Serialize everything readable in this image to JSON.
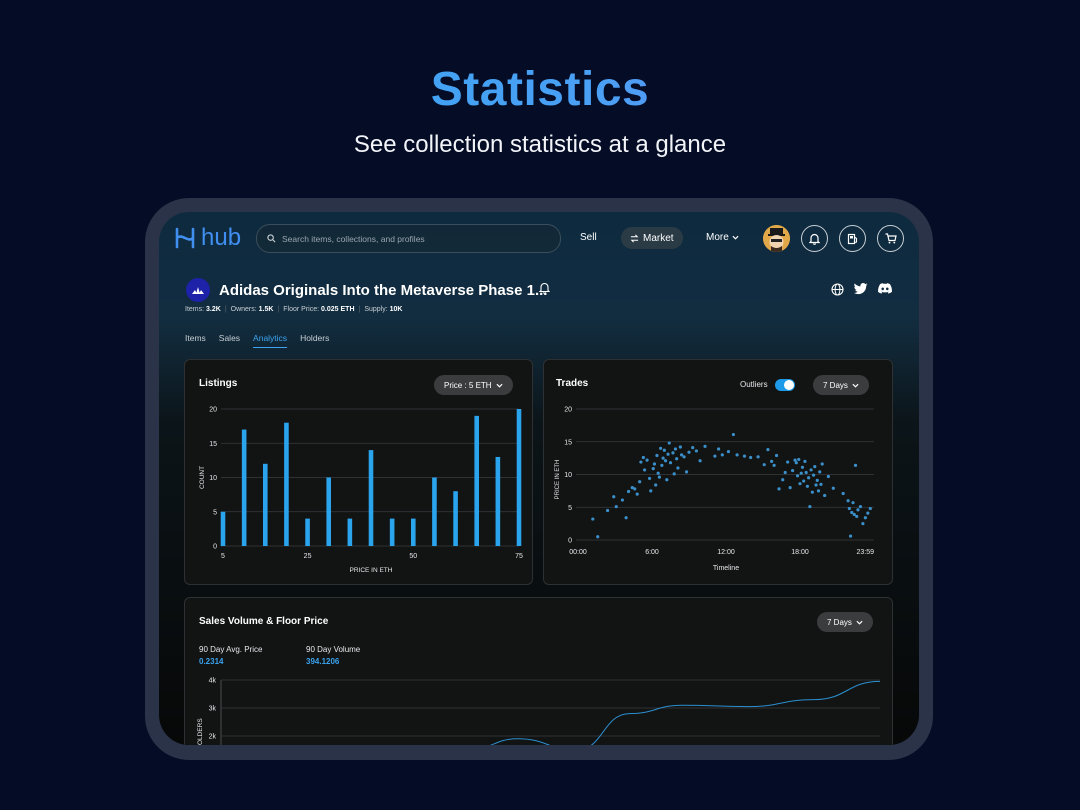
{
  "hero": {
    "title": "Statistics",
    "subtitle": "See collection statistics at a glance"
  },
  "nav": {
    "logo_text": "hub",
    "search_placeholder": "Search items, collections, and profiles",
    "sell": "Sell",
    "market": "Market",
    "more": "More"
  },
  "collection": {
    "title": "Adidas Originals Into the Metaverse Phase 1...",
    "stats": [
      {
        "label": "Items:",
        "value": "3.2K"
      },
      {
        "label": "Owners:",
        "value": "1.5K"
      },
      {
        "label": "Floor Price:",
        "value": "0.025 ETH"
      },
      {
        "label": "Supply:",
        "value": "10K"
      }
    ]
  },
  "tabs": [
    "Items",
    "Sales",
    "Analytics",
    "Holders"
  ],
  "active_tab": "Analytics",
  "colors": {
    "accent": "#3ea4ef",
    "bar": "#2aa4ec",
    "dot": "#3b8fc9"
  },
  "listings": {
    "title": "Listings",
    "filter": "Price : 5 ETH",
    "chart_data": {
      "type": "bar",
      "xlabel": "PRICE IN ETH",
      "ylabel": "COUNT",
      "ylim": [
        0,
        20
      ],
      "yticks": [
        "0",
        "5",
        "10",
        "15",
        "20"
      ],
      "xticks": [
        {
          "label": "5",
          "value": 5
        },
        {
          "label": "25",
          "value": 25
        },
        {
          "label": "50",
          "value": 50
        },
        {
          "label": "75",
          "value": 75
        }
      ],
      "x": [
        5,
        10,
        15,
        20,
        25,
        30,
        35,
        40,
        45,
        50,
        55,
        60,
        65,
        70,
        75
      ],
      "values": [
        5,
        17,
        12,
        18,
        4,
        10,
        4,
        14,
        4,
        4,
        10,
        8,
        19,
        13,
        20
      ]
    }
  },
  "trades": {
    "title": "Trades",
    "outliers_label": "Outliers",
    "range": "7 Days",
    "chart_data": {
      "type": "scatter",
      "xlabel": "Timeline",
      "ylabel": "PRICE IN ETH",
      "ylim": [
        0,
        20
      ],
      "yticks": [
        "0",
        "5",
        "10",
        "15",
        "20"
      ],
      "xticks": [
        {
          "label": "00:00",
          "value": 0
        },
        {
          "label": "6:00",
          "value": 6
        },
        {
          "label": "12:00",
          "value": 12
        },
        {
          "label": "18:00",
          "value": 18
        },
        {
          "label": "23:59",
          "value": 24
        }
      ],
      "points": [
        [
          1.2,
          3.2
        ],
        [
          1.6,
          0.5
        ],
        [
          2.4,
          4.5
        ],
        [
          2.9,
          6.6
        ],
        [
          3.1,
          5.1
        ],
        [
          3.6,
          6.1
        ],
        [
          3.9,
          3.4
        ],
        [
          4.1,
          7.4
        ],
        [
          4.4,
          8.0
        ],
        [
          4.6,
          7.8
        ],
        [
          4.8,
          7.0
        ],
        [
          5.0,
          8.9
        ],
        [
          5.1,
          11.9
        ],
        [
          5.3,
          12.6
        ],
        [
          5.4,
          10.7
        ],
        [
          5.6,
          12.2
        ],
        [
          5.8,
          9.4
        ],
        [
          5.9,
          7.5
        ],
        [
          6.1,
          10.9
        ],
        [
          6.2,
          11.6
        ],
        [
          6.3,
          8.4
        ],
        [
          6.4,
          12.9
        ],
        [
          6.5,
          10.2
        ],
        [
          6.6,
          9.6
        ],
        [
          6.7,
          14.0
        ],
        [
          6.8,
          11.4
        ],
        [
          6.9,
          12.5
        ],
        [
          7.0,
          13.7
        ],
        [
          7.1,
          12.1
        ],
        [
          7.2,
          9.2
        ],
        [
          7.3,
          13.1
        ],
        [
          7.4,
          14.8
        ],
        [
          7.5,
          11.8
        ],
        [
          7.7,
          13.3
        ],
        [
          7.8,
          10.1
        ],
        [
          7.9,
          13.9
        ],
        [
          8.0,
          12.4
        ],
        [
          8.1,
          11.0
        ],
        [
          8.3,
          14.2
        ],
        [
          8.4,
          13.0
        ],
        [
          8.6,
          12.7
        ],
        [
          8.8,
          10.4
        ],
        [
          9.0,
          13.4
        ],
        [
          9.3,
          14.1
        ],
        [
          9.6,
          13.6
        ],
        [
          9.9,
          12.1
        ],
        [
          10.3,
          14.3
        ],
        [
          11.1,
          12.8
        ],
        [
          11.4,
          13.9
        ],
        [
          11.7,
          13.0
        ],
        [
          12.2,
          13.5
        ],
        [
          12.6,
          16.1
        ],
        [
          12.9,
          13.0
        ],
        [
          13.5,
          12.8
        ],
        [
          14.0,
          12.6
        ],
        [
          14.6,
          12.7
        ],
        [
          15.1,
          11.5
        ],
        [
          15.4,
          13.8
        ],
        [
          15.7,
          12.0
        ],
        [
          15.9,
          11.4
        ],
        [
          16.1,
          12.9
        ],
        [
          16.3,
          7.8
        ],
        [
          16.6,
          9.2
        ],
        [
          16.8,
          10.3
        ],
        [
          17.0,
          11.9
        ],
        [
          17.2,
          8.0
        ],
        [
          17.4,
          10.6
        ],
        [
          17.6,
          12.2
        ],
        [
          17.7,
          11.8
        ],
        [
          17.8,
          9.8
        ],
        [
          17.9,
          12.3
        ],
        [
          18.0,
          8.6
        ],
        [
          18.1,
          10.2
        ],
        [
          18.2,
          11.1
        ],
        [
          18.3,
          9.0
        ],
        [
          18.4,
          12.0
        ],
        [
          18.5,
          10.3
        ],
        [
          18.6,
          8.2
        ],
        [
          18.7,
          9.5
        ],
        [
          18.8,
          5.1
        ],
        [
          18.9,
          10.7
        ],
        [
          19.0,
          7.3
        ],
        [
          19.1,
          9.9
        ],
        [
          19.2,
          11.2
        ],
        [
          19.3,
          8.4
        ],
        [
          19.4,
          9.1
        ],
        [
          19.5,
          7.5
        ],
        [
          19.6,
          10.4
        ],
        [
          19.7,
          8.5
        ],
        [
          19.8,
          11.6
        ],
        [
          20.0,
          6.8
        ],
        [
          20.3,
          9.7
        ],
        [
          20.7,
          7.9
        ],
        [
          21.5,
          7.1
        ],
        [
          21.9,
          6.0
        ],
        [
          22.0,
          4.8
        ],
        [
          22.1,
          0.6
        ],
        [
          22.2,
          4.2
        ],
        [
          22.3,
          5.7
        ],
        [
          22.4,
          3.9
        ],
        [
          22.5,
          11.4
        ],
        [
          22.6,
          3.6
        ],
        [
          22.7,
          4.6
        ],
        [
          22.9,
          5.1
        ],
        [
          23.1,
          2.5
        ],
        [
          23.3,
          3.4
        ],
        [
          23.5,
          4.1
        ],
        [
          23.7,
          4.8
        ]
      ]
    }
  },
  "sales": {
    "title": "Sales Volume & Floor Price",
    "range": "7 Days",
    "avg_label": "90 Day Avg. Price",
    "avg_value": "0.2314",
    "vol_label": "90 Day Volume",
    "vol_value": "394.1206",
    "chart_data": {
      "type": "line",
      "ylabel": "HOLDERS",
      "yticks": [
        "2k",
        "3k",
        "4k"
      ],
      "series": [
        {
          "x": [
            0.38,
            0.45,
            0.54,
            0.62,
            0.7,
            0.8,
            0.9,
            1.0
          ],
          "values": [
            1550,
            1900,
            1500,
            2800,
            3100,
            3050,
            3300,
            3950
          ]
        }
      ]
    }
  }
}
